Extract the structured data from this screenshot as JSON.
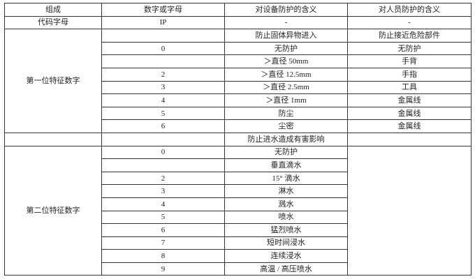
{
  "header": [
    "组成",
    "数字或字母",
    "对设备防护的含义",
    "对人员防护的含义"
  ],
  "code_row": {
    "group": "代码字母",
    "value": "IP",
    "equipment": "-",
    "personnel": "-"
  },
  "first_digit": {
    "group": "第一位特征数字",
    "title_equipment": "防止固体异物进入",
    "title_personnel": "防止接近危险部件",
    "rows": [
      {
        "digit": "0",
        "equipment": "无防护",
        "personnel": "无防护"
      },
      {
        "digit": "",
        "equipment": "＞直径 50mm",
        "personnel": "手背"
      },
      {
        "digit": "2",
        "equipment": "＞直径 12.5mm",
        "personnel": "手指"
      },
      {
        "digit": "3",
        "equipment": "＞直径 2.5mm",
        "personnel": "工具"
      },
      {
        "digit": "4",
        "equipment": "＞直径 1mm",
        "personnel": "金属线"
      },
      {
        "digit": "5",
        "equipment": "防尘",
        "personnel": "金属线"
      },
      {
        "digit": "6",
        "equipment": "尘密",
        "personnel": "金属线"
      }
    ]
  },
  "second_digit": {
    "group": "第二位特征数字",
    "title_equipment": "防止进水造成有害影响",
    "rows": [
      {
        "digit": "0",
        "equipment": "无防护"
      },
      {
        "digit": "",
        "equipment": "垂直滴水"
      },
      {
        "digit": "2",
        "equipment": "15°  滴水"
      },
      {
        "digit": "3",
        "equipment": "淋水"
      },
      {
        "digit": "4",
        "equipment": "溅水"
      },
      {
        "digit": "5",
        "equipment": "喷水"
      },
      {
        "digit": "6",
        "equipment": "猛烈喷水"
      },
      {
        "digit": "7",
        "equipment": "短时间浸水"
      },
      {
        "digit": "8",
        "equipment": "连续浸水"
      },
      {
        "digit": "9",
        "equipment": "高温 / 高压喷水"
      }
    ]
  }
}
